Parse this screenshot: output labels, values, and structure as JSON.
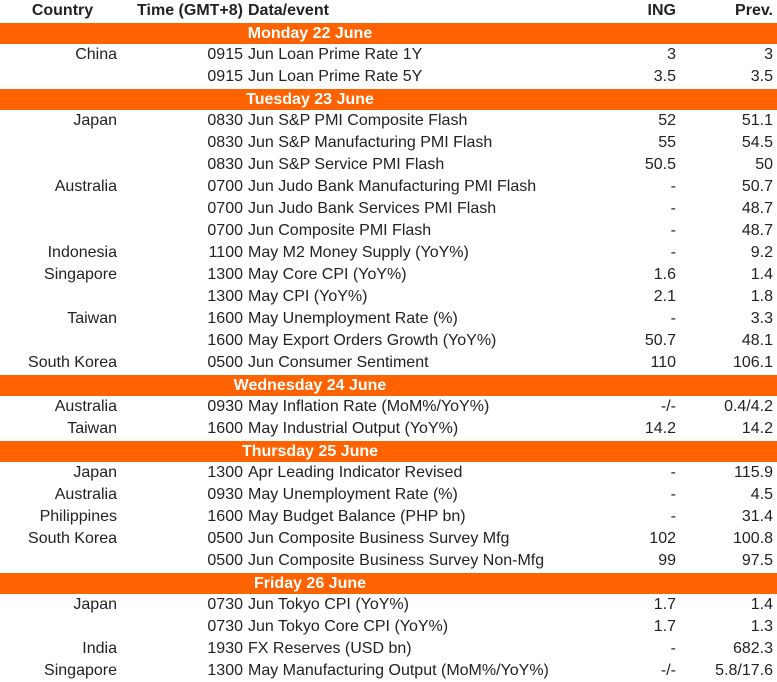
{
  "table": {
    "columns": [
      "Country",
      "Time (GMT+8)",
      "Data/event",
      "ING",
      "Prev."
    ],
    "sections": [
      {
        "day": "Monday 22 June",
        "rows": [
          [
            "China",
            "0915",
            "Jun Loan Prime Rate 1Y",
            "3",
            "3"
          ],
          [
            null,
            "0915",
            "Jun Loan Prime Rate 5Y",
            "3.5",
            "3.5"
          ]
        ]
      },
      {
        "day": "Tuesday 23 June",
        "rows": [
          [
            "Japan",
            "0830",
            "Jun S&P PMI Composite Flash",
            "52",
            "51.1"
          ],
          [
            null,
            "0830",
            "Jun S&P Manufacturing PMI Flash",
            "55",
            "54.5"
          ],
          [
            null,
            "0830",
            "Jun S&P Service PMI Flash",
            "50.5",
            "50"
          ],
          [
            "Australia",
            "0700",
            "Jun Judo Bank Manufacturing PMI Flash",
            "-",
            "50.7"
          ],
          [
            null,
            "0700",
            "Jun Judo Bank Services PMI Flash",
            "-",
            "48.7"
          ],
          [
            null,
            "0700",
            "Jun Composite PMI Flash",
            "-",
            "48.7"
          ],
          [
            "Indonesia",
            "1100",
            "May M2 Money Supply (YoY%)",
            "-",
            "9.2"
          ],
          [
            "Singapore",
            "1300",
            "May Core CPI (YoY%)",
            "1.6",
            "1.4"
          ],
          [
            null,
            "1300",
            "May CPI (YoY%)",
            "2.1",
            "1.8"
          ],
          [
            "Taiwan",
            "1600",
            "May Unemployment Rate (%)",
            "-",
            "3.3"
          ],
          [
            null,
            "1600",
            "May Export Orders Growth (YoY%)",
            "50.7",
            "48.1"
          ],
          [
            "South Korea",
            "0500",
            "Jun Consumer Sentiment",
            "110",
            "106.1"
          ]
        ]
      },
      {
        "day": "Wednesday 24 June",
        "rows": [
          [
            "Australia",
            "0930",
            "May Inflation Rate (MoM%/YoY%)",
            "-/-",
            "0.4/4.2"
          ],
          [
            "Taiwan",
            "1600",
            "May Industrial Output (YoY%)",
            "14.2",
            "14.2"
          ]
        ]
      },
      {
        "day": "Thursday 25 June",
        "rows": [
          [
            "Japan",
            "1300",
            "Apr Leading Indicator Revised",
            "-",
            "115.9"
          ],
          [
            "Australia",
            "0930",
            "May Unemployment Rate (%)",
            "-",
            "4.5"
          ],
          [
            "Philippines",
            "1600",
            "May Budget Balance (PHP bn)",
            "-",
            "31.4"
          ],
          [
            "South Korea",
            "0500",
            "Jun Composite Business Survey Mfg",
            "102",
            "100.8"
          ],
          [
            null,
            "0500",
            "Jun Composite Business Survey Non-Mfg",
            "99",
            "97.5"
          ]
        ]
      },
      {
        "day": "Friday 26 June",
        "rows": [
          [
            "Japan",
            "0730",
            "Jun Tokyo CPI (YoY%)",
            "1.7",
            "1.4"
          ],
          [
            null,
            "0730",
            "Jun Tokyo Core CPI (YoY%)",
            "1.7",
            "1.3"
          ],
          [
            "India",
            "1930",
            "FX Reserves (USD bn)",
            "-",
            "682.3"
          ],
          [
            "Singapore",
            "1300",
            "May Manufacturing Output (MoM%/YoY%)",
            "-/-",
            "5.8/17.6"
          ]
        ]
      }
    ]
  }
}
